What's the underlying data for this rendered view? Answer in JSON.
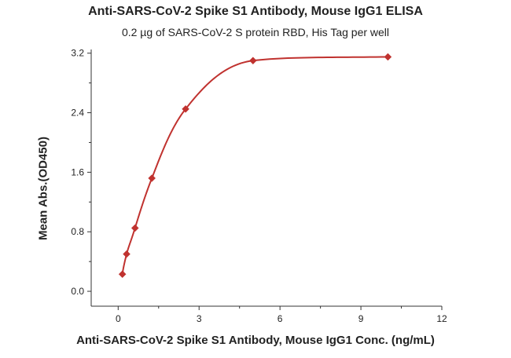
{
  "chart_data": {
    "type": "scatter",
    "title": "Anti-SARS-CoV-2 Spike S1 Antibody, Mouse IgG1 ELISA",
    "subtitle": "0.2 µg of SARS-CoV-2 S protein RBD, His Tag per well",
    "xlabel": "Anti-SARS-CoV-2 Spike S1 Antibody, Mouse IgG1 Conc. (ng/mL)",
    "ylabel": "Mean Abs.(OD450)",
    "xlim": [
      -1,
      12
    ],
    "ylim": [
      -0.2,
      3.25
    ],
    "x_ticks": [
      "0",
      "3",
      "6",
      "9",
      "12"
    ],
    "y_ticks": [
      "0.0",
      "0.8",
      "1.6",
      "2.4",
      "3.2"
    ],
    "grid": false,
    "series": [
      {
        "x": [
          0.156,
          0.313,
          0.625,
          1.25,
          2.5,
          5,
          10
        ],
        "y": [
          0.23,
          0.5,
          0.85,
          1.52,
          2.45,
          3.1,
          3.15
        ],
        "color": "#c0322f",
        "marker": "diamond",
        "fit_curve": "four-parameter logistic"
      }
    ]
  }
}
